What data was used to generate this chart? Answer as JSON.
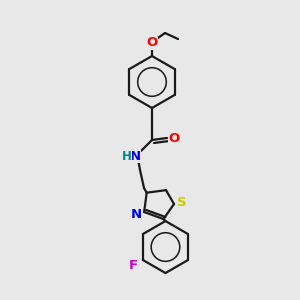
{
  "background_color": "#eaeaea",
  "bond_color": "#1a1a1a",
  "atom_colors": {
    "O": "#ff0000",
    "N": "#0000ee",
    "S": "#cccc00",
    "F": "#cc00cc",
    "H": "#008888"
  },
  "lw": 1.6,
  "fs": 8.5,
  "fig_bg": "#e8e8e8"
}
